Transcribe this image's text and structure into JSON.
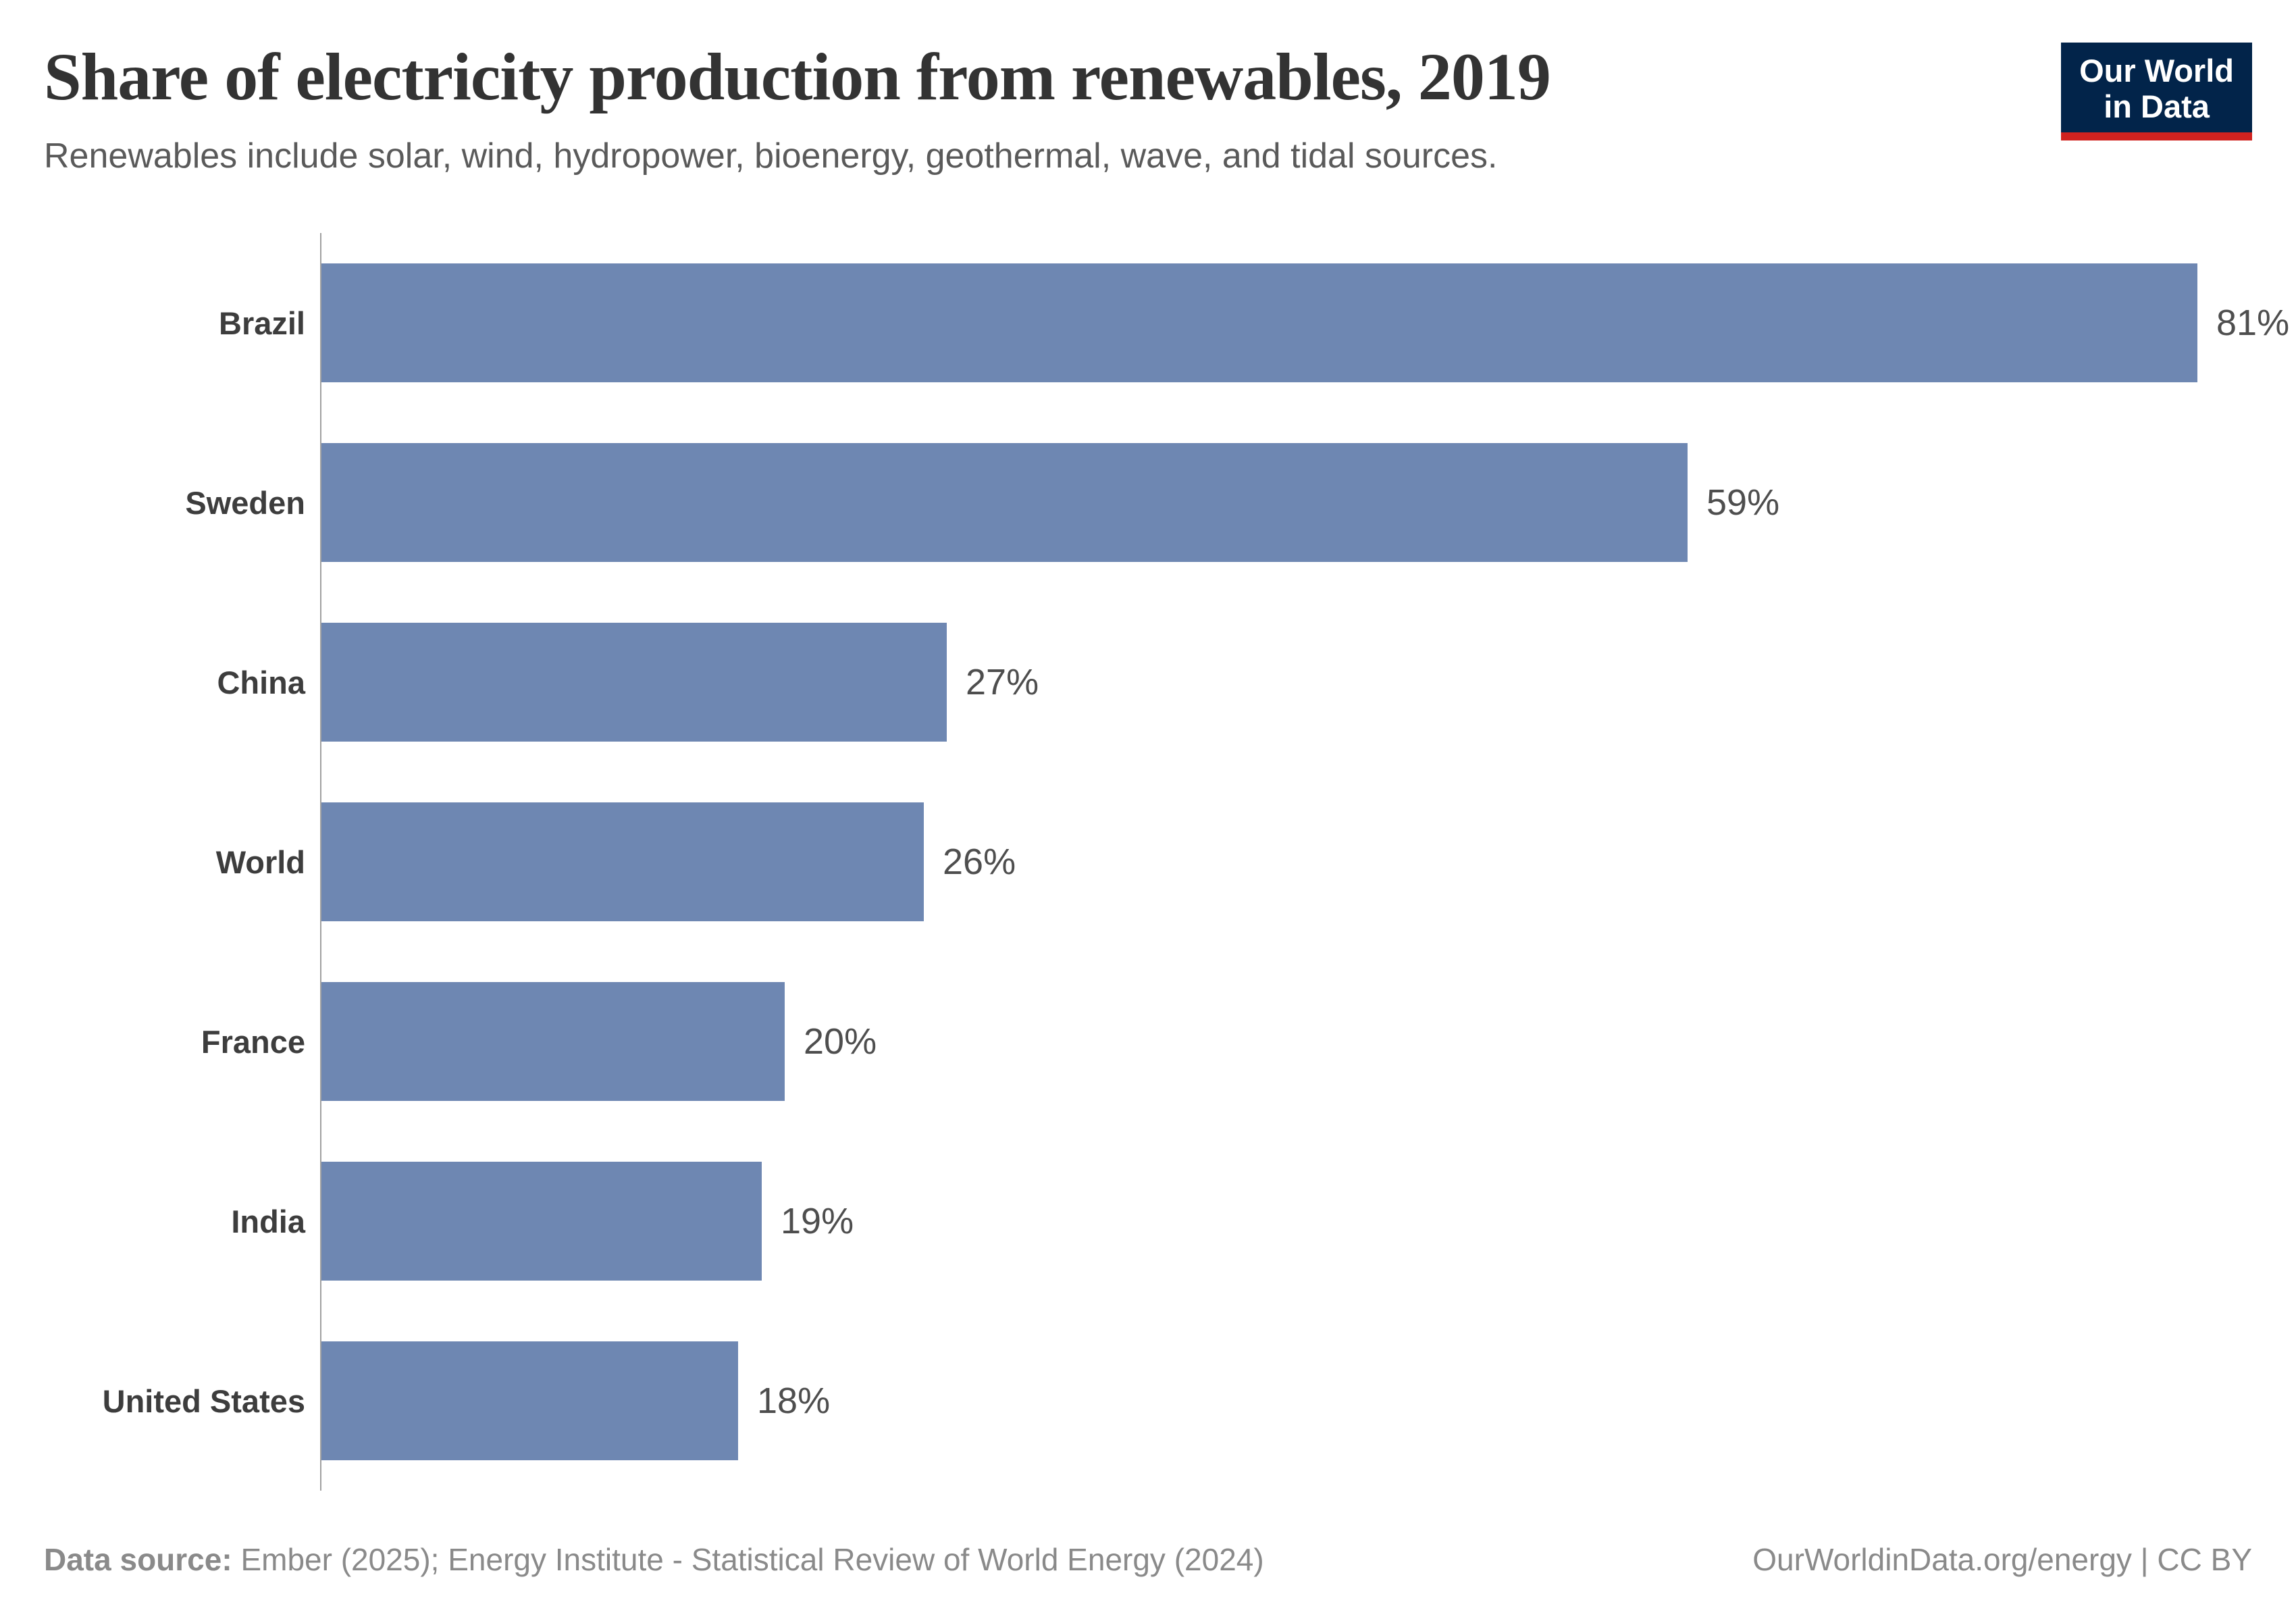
{
  "header": {
    "title": "Share of electricity production from renewables, 2019",
    "subtitle": "Renewables include solar, wind, hydropower, bioenergy, geothermal, wave, and tidal sources."
  },
  "logo": {
    "line1": "Our World",
    "line2": "in Data",
    "background_color": "#02244a",
    "accent_color": "#d0221f"
  },
  "chart_data": {
    "type": "bar",
    "orientation": "horizontal",
    "title": "Share of electricity production from renewables, 2019",
    "subtitle": "Renewables include solar, wind, hydropower, bioenergy, geothermal, wave, and tidal sources.",
    "unit": "%",
    "categories": [
      "Brazil",
      "Sweden",
      "China",
      "World",
      "France",
      "India",
      "United States"
    ],
    "values": [
      81,
      59,
      27,
      26,
      20,
      19,
      18
    ],
    "value_labels": [
      "81%",
      "59%",
      "27%",
      "26%",
      "20%",
      "19%",
      "18%"
    ],
    "xlim": [
      0,
      85
    ],
    "grid": false,
    "legend_position": "none",
    "bar_color": "#6e87b2",
    "axis_color": "#a0a0a0"
  },
  "footer": {
    "data_source_label": "Data source:",
    "data_source_text": "Ember (2025); Energy Institute - Statistical Review of World Energy (2024)",
    "license_text": "OurWorldinData.org/energy | CC BY"
  }
}
